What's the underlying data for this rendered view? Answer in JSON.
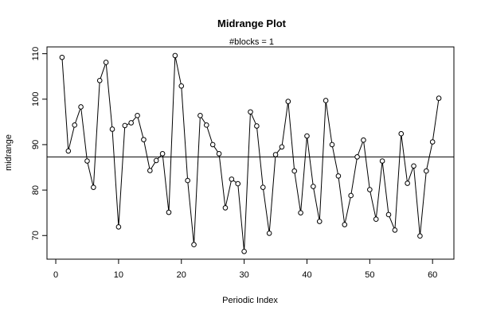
{
  "chart_data": {
    "type": "line",
    "title": "Midrange Plot",
    "subtitle": "#blocks =  1",
    "xlabel": "Periodic Index",
    "ylabel": "midrange",
    "xlim": [
      -1.4,
      63.4
    ],
    "ylim": [
      64.8,
      111.5
    ],
    "xticks": [
      0,
      10,
      20,
      30,
      40,
      50,
      60
    ],
    "yticks": [
      70,
      80,
      90,
      100,
      110
    ],
    "grid": false,
    "marker": "open-circle",
    "hline": 87.3,
    "x": [
      1,
      2,
      3,
      4,
      5,
      6,
      7,
      8,
      9,
      10,
      11,
      12,
      13,
      14,
      15,
      16,
      17,
      18,
      19,
      20,
      21,
      22,
      23,
      24,
      25,
      26,
      27,
      28,
      29,
      30,
      31,
      32,
      33,
      34,
      35,
      36,
      37,
      38,
      39,
      40,
      41,
      42,
      43,
      44,
      45,
      46,
      47,
      48,
      49,
      50,
      51,
      52,
      53,
      54,
      55,
      56,
      57,
      58,
      59,
      60,
      61
    ],
    "y": [
      109.2,
      88.6,
      94.3,
      98.3,
      86.4,
      80.6,
      104.1,
      108.1,
      93.4,
      71.9,
      94.2,
      94.8,
      96.4,
      91.1,
      84.3,
      86.5,
      88.0,
      75.1,
      109.6,
      102.9,
      82.1,
      68.0,
      96.4,
      94.3,
      90.0,
      88.0,
      76.1,
      82.4,
      81.4,
      66.5,
      97.2,
      94.1,
      80.6,
      70.5,
      87.8,
      89.5,
      99.5,
      84.2,
      75.0,
      91.9,
      80.8,
      73.1,
      99.7,
      90.0,
      83.1,
      72.4,
      78.8,
      87.3,
      91.0,
      80.1,
      73.6,
      86.4,
      74.6,
      71.2,
      92.4,
      81.5,
      85.3,
      69.9,
      84.2,
      90.6,
      100.2
    ]
  }
}
